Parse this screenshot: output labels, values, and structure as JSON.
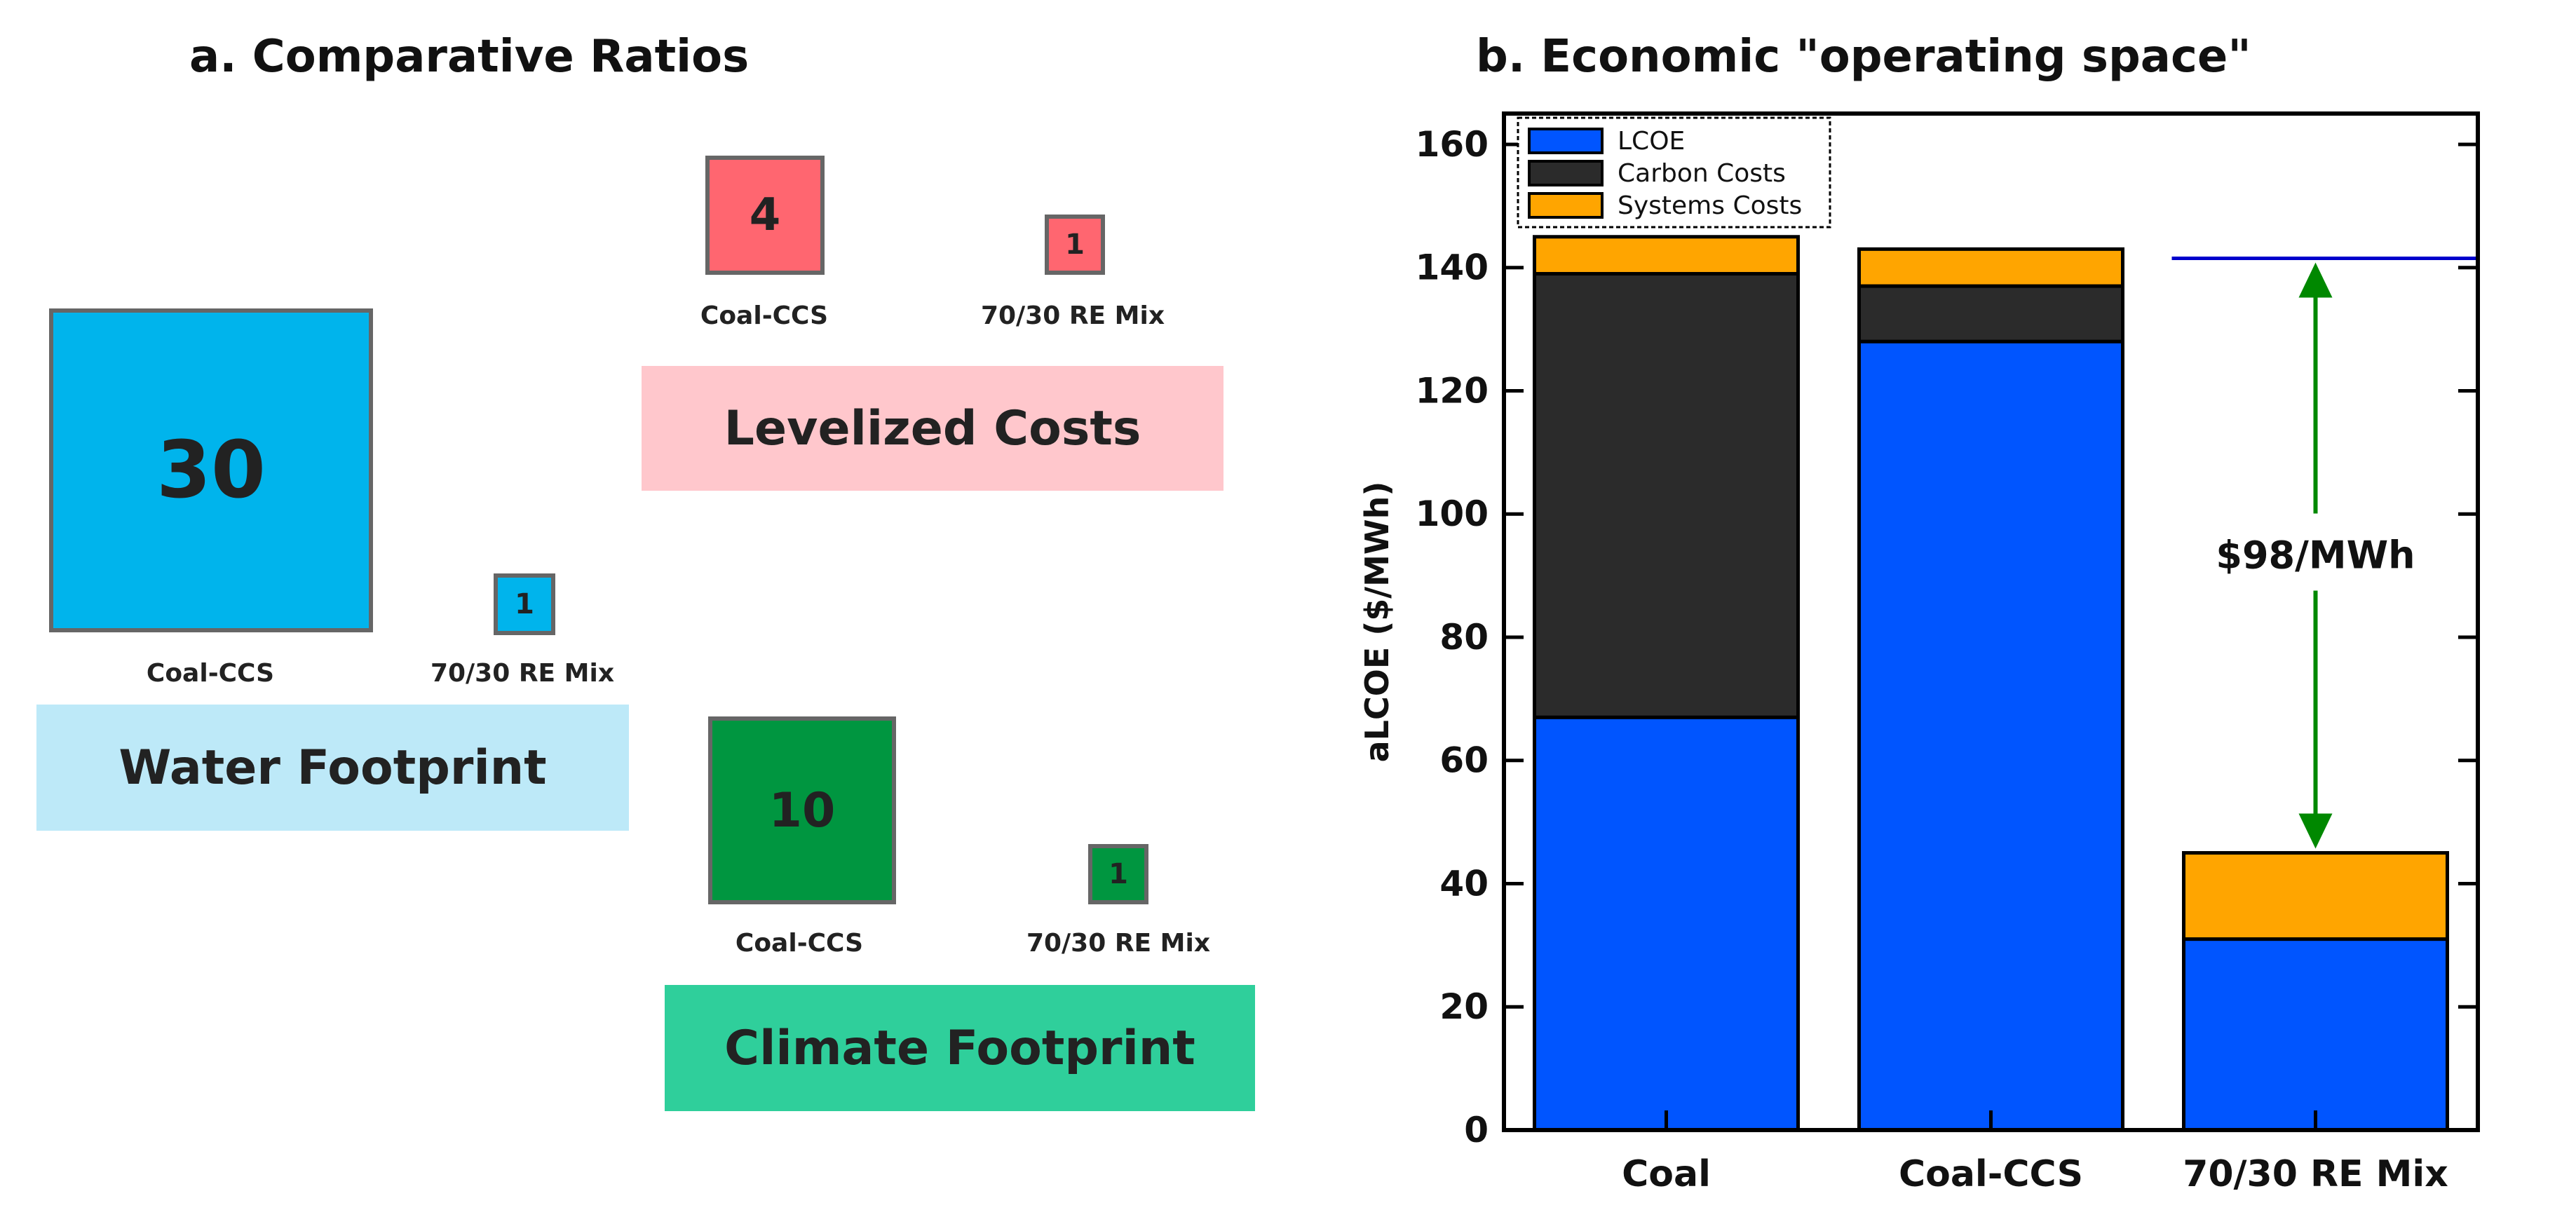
{
  "panel_a": {
    "title": "a. Comparative Ratios",
    "groups": [
      {
        "name": "Levelized Costs",
        "color": "#ff6670",
        "band_color": "#ffc7cc",
        "left": {
          "value": "4",
          "label": "Coal-CCS"
        },
        "right": {
          "value": "1",
          "label": "70/30 RE Mix"
        }
      },
      {
        "name": "Water Footprint",
        "color": "#00b4ec",
        "band_color": "#bde9f8",
        "left": {
          "value": "30",
          "label": "Coal-CCS"
        },
        "right": {
          "value": "1",
          "label": "70/30 RE Mix"
        }
      },
      {
        "name": "Climate Footprint",
        "color": "#009640",
        "band_color": "#2fcf9b",
        "left": {
          "value": "10",
          "label": "Coal-CCS"
        },
        "right": {
          "value": "1",
          "label": "70/30 RE Mix"
        }
      }
    ]
  },
  "chart_data": {
    "type": "bar",
    "title": "b. Economic \"operating space\"",
    "xlabel": "",
    "ylabel": "aLCOE ($/MWh)",
    "ylim": [
      0,
      165
    ],
    "yticks": [
      0,
      20,
      40,
      60,
      80,
      100,
      120,
      140,
      160
    ],
    "categories": [
      "Coal",
      "Coal-CCS",
      "70/30 RE Mix"
    ],
    "stacked": true,
    "series": [
      {
        "name": "LCOE",
        "color": "#0055ff",
        "values": [
          67,
          128,
          31
        ]
      },
      {
        "name": "Carbon Costs",
        "color": "#2b2b2b",
        "values": [
          72,
          9,
          0
        ]
      },
      {
        "name": "Systems Costs",
        "color": "#ffa500",
        "values": [
          6,
          6,
          14
        ]
      }
    ],
    "legend_position": "top-left",
    "annotation": {
      "text": "$98/MWh",
      "reference_line_value": 141.5,
      "reference_line_color": "#0000cc",
      "arrow_from": 45,
      "arrow_to": 141.5,
      "arrow_color": "#008800",
      "category": "70/30 RE Mix"
    }
  }
}
